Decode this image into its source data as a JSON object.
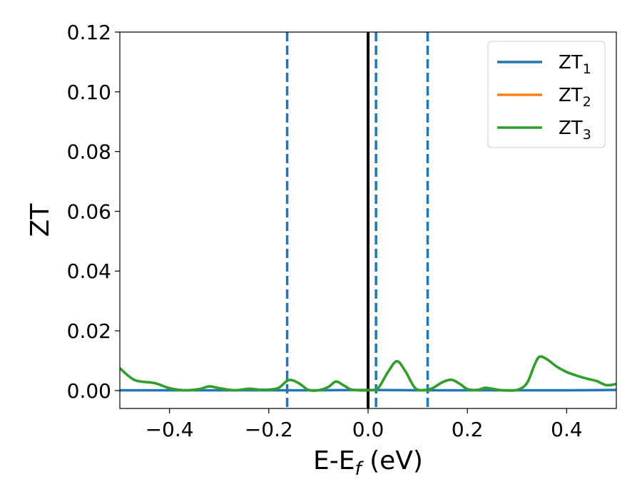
{
  "chart_data": {
    "type": "line",
    "xlabel": "E-E",
    "xlabel_sub": "f",
    "xlabel_unit": " (eV)",
    "ylabel": "ZT",
    "xlim": [
      -0.5,
      0.5
    ],
    "ylim": [
      -0.006,
      0.12
    ],
    "x_ticks": [
      -0.4,
      -0.2,
      0.0,
      0.2,
      0.4
    ],
    "x_tick_labels": [
      "−0.4",
      "−0.2",
      "0.0",
      "0.2",
      "0.4"
    ],
    "y_ticks": [
      0.0,
      0.02,
      0.04,
      0.06,
      0.08,
      0.1,
      0.12
    ],
    "y_tick_labels": [
      "0.00",
      "0.02",
      "0.04",
      "0.06",
      "0.08",
      "0.10",
      "0.12"
    ],
    "grid": false,
    "legend_position": "top-right",
    "vertical_lines": [
      {
        "x": -0.163,
        "style": "dashed",
        "color": "#1f77b4"
      },
      {
        "x": 0.0,
        "style": "solid",
        "color": "#000000"
      },
      {
        "x": 0.016,
        "style": "dashed",
        "color": "#1f77b4"
      },
      {
        "x": 0.12,
        "style": "dashed",
        "color": "#1f77b4"
      }
    ],
    "series": [
      {
        "name": "ZT",
        "sub": "1",
        "color": "#1f77b4",
        "x": [
          -0.5,
          -0.4,
          -0.3,
          -0.2,
          -0.1,
          0.0,
          0.1,
          0.2,
          0.3,
          0.4,
          0.5
        ],
        "y": [
          0.0001,
          0.0001,
          0.0001,
          0.0001,
          0.0001,
          0.0002,
          0.0001,
          0.0001,
          0.0001,
          0.0001,
          0.0002
        ]
      },
      {
        "name": "ZT",
        "sub": "2",
        "color": "#ff7f0e",
        "x": [
          -0.5,
          -0.47,
          -0.43,
          -0.4,
          -0.37,
          -0.34,
          -0.32,
          -0.3,
          -0.27,
          -0.24,
          -0.22,
          -0.2,
          -0.18,
          -0.16,
          -0.14,
          -0.12,
          -0.1,
          -0.08,
          -0.065,
          -0.05,
          -0.035,
          -0.02,
          0.0,
          0.02,
          0.04,
          0.058,
          0.075,
          0.095,
          0.115,
          0.13,
          0.15,
          0.168,
          0.185,
          0.2,
          0.22,
          0.235,
          0.25,
          0.27,
          0.3,
          0.32,
          0.335,
          0.345,
          0.36,
          0.38,
          0.4,
          0.42,
          0.44,
          0.46,
          0.48,
          0.5
        ],
        "y": [
          0.0075,
          0.0035,
          0.0025,
          0.0008,
          0.0001,
          0.0005,
          0.0014,
          0.0008,
          0.0001,
          0.0006,
          0.0003,
          0.0003,
          0.0009,
          0.0035,
          0.0025,
          0.0002,
          0.0001,
          0.0012,
          0.003,
          0.0018,
          0.0004,
          0.0001,
          0.0001,
          0.0008,
          0.0062,
          0.0098,
          0.0065,
          0.0008,
          0.0002,
          0.0008,
          0.0028,
          0.0036,
          0.0022,
          0.0005,
          0.0002,
          0.0009,
          0.0006,
          0.0001,
          0.0002,
          0.0025,
          0.0085,
          0.0113,
          0.0105,
          0.008,
          0.0062,
          0.005,
          0.004,
          0.0032,
          0.0018,
          0.0022
        ]
      },
      {
        "name": "ZT",
        "sub": "3",
        "color": "#2ca02c",
        "x": [
          -0.5,
          -0.47,
          -0.43,
          -0.4,
          -0.37,
          -0.34,
          -0.32,
          -0.3,
          -0.27,
          -0.24,
          -0.22,
          -0.2,
          -0.18,
          -0.16,
          -0.14,
          -0.12,
          -0.1,
          -0.08,
          -0.065,
          -0.05,
          -0.035,
          -0.02,
          0.0,
          0.02,
          0.04,
          0.058,
          0.075,
          0.095,
          0.115,
          0.13,
          0.15,
          0.168,
          0.185,
          0.2,
          0.22,
          0.235,
          0.25,
          0.27,
          0.3,
          0.32,
          0.335,
          0.345,
          0.36,
          0.38,
          0.4,
          0.42,
          0.44,
          0.46,
          0.48,
          0.5
        ],
        "y": [
          0.0075,
          0.0035,
          0.0025,
          0.0008,
          0.0001,
          0.0005,
          0.0014,
          0.0008,
          0.0001,
          0.0006,
          0.0003,
          0.0003,
          0.0009,
          0.0035,
          0.0025,
          0.0002,
          0.0001,
          0.0012,
          0.003,
          0.0018,
          0.0004,
          0.0001,
          0.0001,
          0.0008,
          0.0062,
          0.0098,
          0.0065,
          0.0008,
          0.0002,
          0.0008,
          0.0028,
          0.0036,
          0.0022,
          0.0005,
          0.0002,
          0.0009,
          0.0006,
          0.0001,
          0.0002,
          0.0025,
          0.0085,
          0.0113,
          0.0105,
          0.008,
          0.0062,
          0.005,
          0.004,
          0.0032,
          0.0018,
          0.0022
        ]
      }
    ]
  }
}
